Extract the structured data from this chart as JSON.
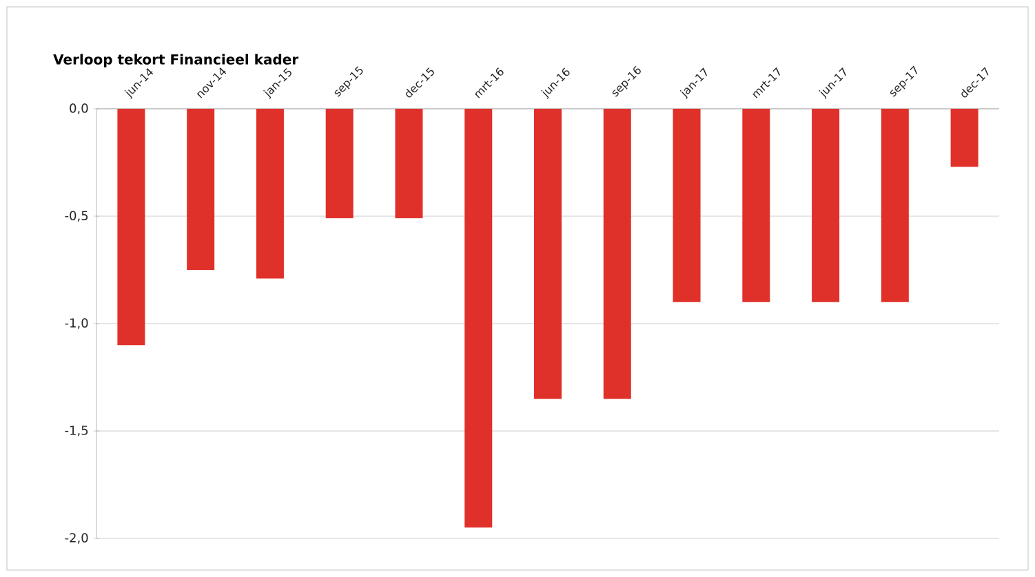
{
  "chart_data": {
    "type": "bar",
    "title": "Verloop tekort Financieel kader",
    "categories": [
      "jun-14",
      "nov-14",
      "jan-15",
      "sep-15",
      "dec-15",
      "mrt-16",
      "jun-16",
      "sep-16",
      "jan-17",
      "mrt-17",
      "jun-17",
      "sep-17",
      "dec-17"
    ],
    "values": [
      -1.1,
      -0.75,
      -0.79,
      -0.51,
      -0.51,
      -1.95,
      -1.35,
      -1.35,
      -0.9,
      -0.9,
      -0.9,
      -0.9,
      -0.27
    ],
    "color": "#e0302a",
    "ylim": [
      -2.0,
      0.0
    ],
    "yticks": [
      {
        "value": 0.0,
        "label": "0,0"
      },
      {
        "value": -0.5,
        "label": "-0,5"
      },
      {
        "value": -1.0,
        "label": "-1,0"
      },
      {
        "value": -1.5,
        "label": "-1,5"
      },
      {
        "value": -2.0,
        "label": "-2,0"
      }
    ],
    "grid": "y"
  }
}
